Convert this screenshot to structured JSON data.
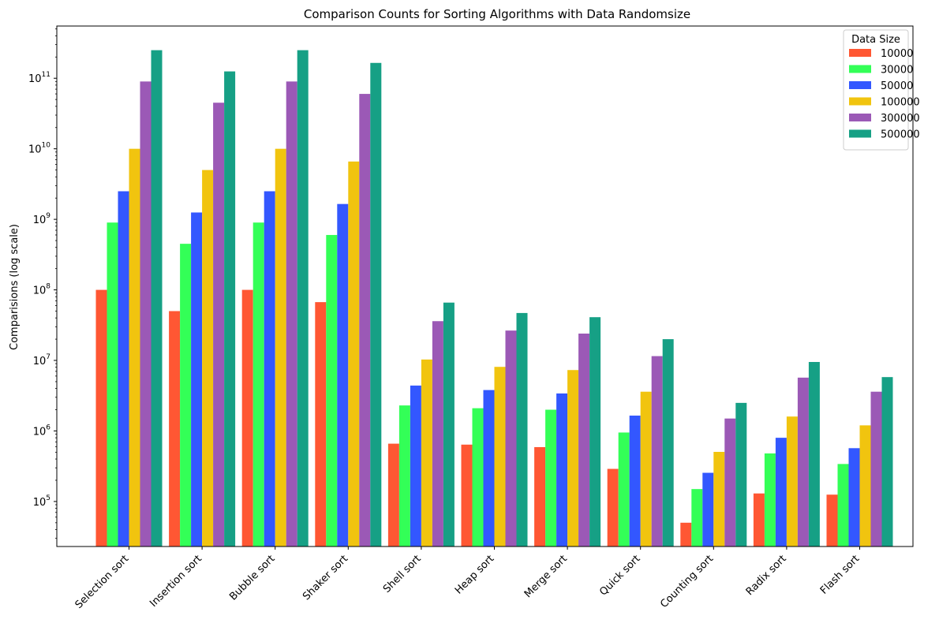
{
  "chart_data": {
    "type": "bar",
    "title": "Comparison Counts for Sorting Algorithms with Data Randomsize",
    "xlabel": "",
    "ylabel": "Comparisions (log scale)",
    "yscale": "log",
    "ylim": [
      23000,
      550000000000
    ],
    "grid": false,
    "legend_title": "Data Size",
    "legend_position": "top-right",
    "categories": [
      "Selection sort",
      "Insertion sort",
      "Bubble sort",
      "Shaker sort",
      "Shell sort",
      "Heap sort",
      "Merge sort",
      "Quick sort",
      "Counting sort",
      "Radix sort",
      "Flash sort"
    ],
    "series": [
      {
        "name": "10000",
        "color": "#ff5733",
        "values": [
          100000000,
          50000000,
          100000000,
          67000000,
          660000,
          640000,
          590000,
          290000,
          50000,
          130000,
          125000
        ]
      },
      {
        "name": "30000",
        "color": "#33ff57",
        "values": [
          900000000,
          450000000,
          900000000,
          600000000,
          2300000,
          2100000,
          2000000,
          950000,
          150000,
          480000,
          340000
        ]
      },
      {
        "name": "50000",
        "color": "#3357ff",
        "values": [
          2500000000,
          1250000000,
          2500000000,
          1650000000,
          4400000,
          3800000,
          3400000,
          1650000,
          255000,
          800000,
          570000
        ]
      },
      {
        "name": "100000",
        "color": "#f1c40f",
        "values": [
          10000000000,
          5000000000,
          10000000000,
          6600000000,
          10300000,
          8100000,
          7300000,
          3600000,
          505000,
          1600000,
          1200000
        ]
      },
      {
        "name": "300000",
        "color": "#9b59b6",
        "values": [
          90000000000,
          45000000000,
          90000000000,
          60000000000,
          36000000,
          26500000,
          24000000,
          11500000,
          1500000,
          5700000,
          3600000
        ]
      },
      {
        "name": "500000",
        "color": "#16a085",
        "values": [
          250000000000,
          125000000000,
          250000000000,
          165000000000,
          66000000,
          47000000,
          41000000,
          20000000,
          2500000,
          9500000,
          5800000
        ]
      }
    ]
  }
}
